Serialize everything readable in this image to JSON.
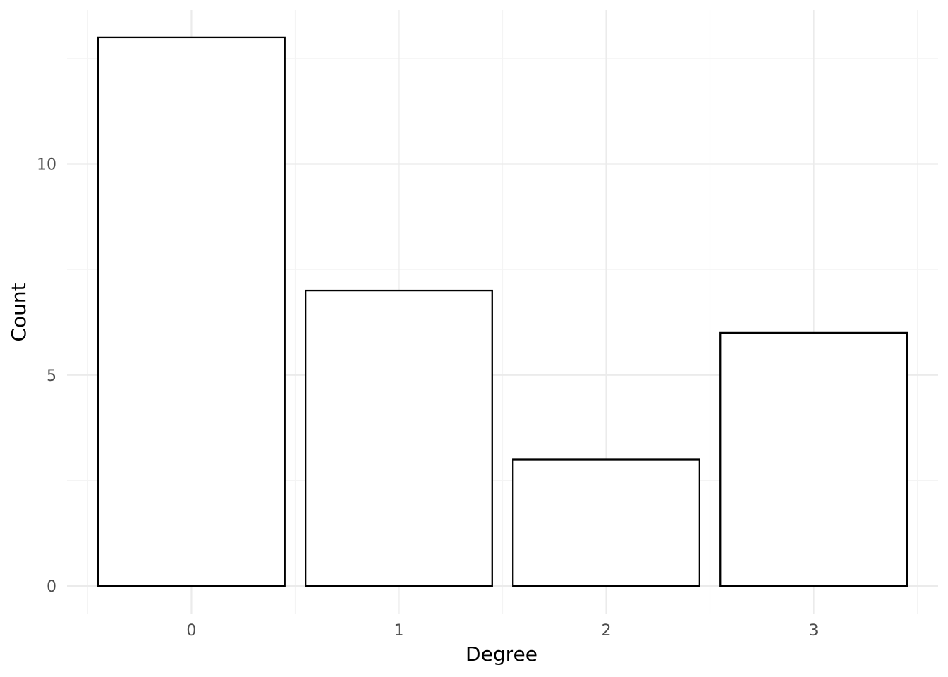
{
  "chart_data": {
    "type": "bar",
    "categories": [
      "0",
      "1",
      "2",
      "3"
    ],
    "values": [
      13,
      7,
      3,
      6
    ],
    "title": "",
    "xlabel": "Degree",
    "ylabel": "Count",
    "ylim": [
      -0.65,
      13.65
    ],
    "yticks": [
      0,
      5,
      10
    ],
    "grid": true,
    "legend": "none",
    "colors": {
      "bar_fill": "#ffffff",
      "bar_stroke": "#000000",
      "grid_major": "#ebebeb",
      "grid_minor": "#f4f4f4",
      "tick_text": "#4d4d4d",
      "axis_title": "#000000"
    }
  }
}
